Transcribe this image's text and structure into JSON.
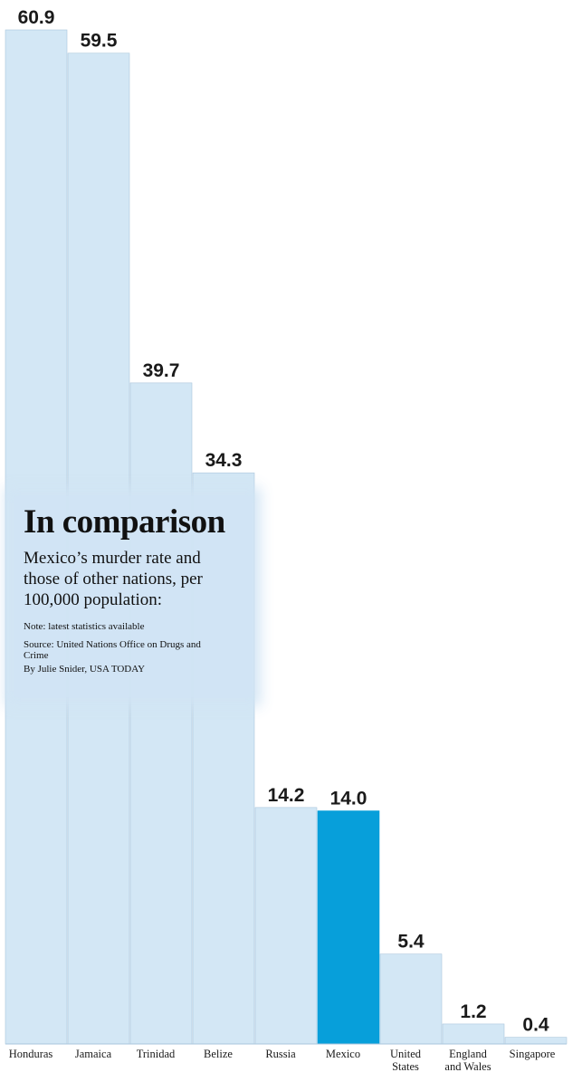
{
  "header": {
    "title": "In comparison",
    "subtitle": "Mexico’s murder rate and those of other nations, per 100,000 population:",
    "note": "Note: latest statistics available",
    "source": "Source: United Nations Office on Drugs and Crime",
    "credit": "By Julie Snider, USA TODAY"
  },
  "colors": {
    "bar": "#d3e7f5",
    "highlight": "#079fda",
    "bar_edge": "#aac6dc"
  },
  "chart_data": {
    "type": "bar",
    "title": "In comparison",
    "categories": [
      "Honduras",
      "Jamaica",
      "Trinidad",
      "Belize",
      "Russia",
      "Mexico",
      "United States",
      "England and Wales",
      "Singapore"
    ],
    "category_lines": [
      [
        "Honduras"
      ],
      [
        "Jamaica"
      ],
      [
        "Trinidad"
      ],
      [
        "Belize"
      ],
      [
        "Russia"
      ],
      [
        "Mexico"
      ],
      [
        "United",
        "States"
      ],
      [
        "England",
        "and Wales"
      ],
      [
        "Singapore"
      ]
    ],
    "values": [
      60.9,
      59.5,
      39.7,
      34.3,
      14.2,
      14.0,
      5.4,
      1.2,
      0.4
    ],
    "value_labels": [
      "60.9",
      "59.5",
      "39.7",
      "34.3",
      "14.2",
      "14.0",
      "5.4",
      "1.2",
      "0.4"
    ],
    "highlight": "Mexico",
    "ylim": [
      0,
      60.9
    ],
    "grid": false,
    "xlabel": "",
    "ylabel": ""
  }
}
